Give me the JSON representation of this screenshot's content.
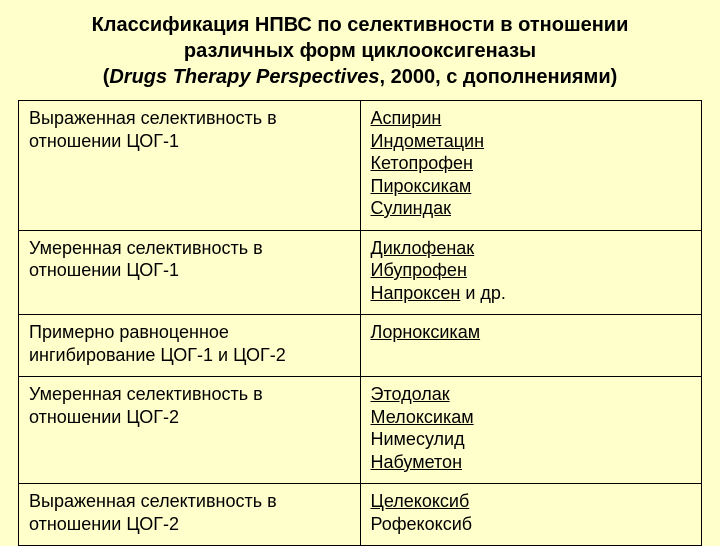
{
  "title": {
    "line1": "Классификация НПВС по селективности в отношении",
    "line2": "различных форм циклооксигеназы",
    "source": "Drugs Therapy Perspectives",
    "suffix": ", 2000, с дополнениями)"
  },
  "rows": [
    {
      "category": "Выраженная селективность в отношении ЦОГ-1",
      "drugs": [
        {
          "name": "Аспирин",
          "u": true
        },
        {
          "name": "Индометацин",
          "u": true
        },
        {
          "name": "Кетопрофен",
          "u": true
        },
        {
          "name": "Пироксикам",
          "u": true
        },
        {
          "name": "Сулиндак",
          "u": true
        }
      ]
    },
    {
      "category": "Умеренная селективность в отношении ЦОГ-1",
      "drugs": [
        {
          "name": "Диклофенак",
          "u": true
        },
        {
          "name": "Ибупрофен",
          "u": true
        },
        {
          "name": "Напроксен",
          "u": true,
          "suffix": " и др."
        }
      ]
    },
    {
      "category": "Примерно равноценное ингибирование ЦОГ-1 и ЦОГ-2",
      "drugs": [
        {
          "name": "Лорноксикам",
          "u": true
        }
      ]
    },
    {
      "category": "Умеренная селективность в отношении ЦОГ-2",
      "drugs": [
        {
          "name": "Этодолак",
          "u": true
        },
        {
          "name": "Мелоксикам",
          "u": true
        },
        {
          "name": "Нимесулид",
          "u": false
        },
        {
          "name": "Набуметон",
          "u": true
        }
      ]
    },
    {
      "category": "Выраженная селективность в отношении ЦОГ-2",
      "drugs": [
        {
          "name": "Целекоксиб",
          "u": true
        },
        {
          "name": "Рофекоксиб",
          "u": false
        }
      ]
    }
  ],
  "style": {
    "background_color": "#ffffcc",
    "text_color": "#000000",
    "border_color": "#000000",
    "title_fontsize": 20,
    "cell_fontsize": 18
  }
}
